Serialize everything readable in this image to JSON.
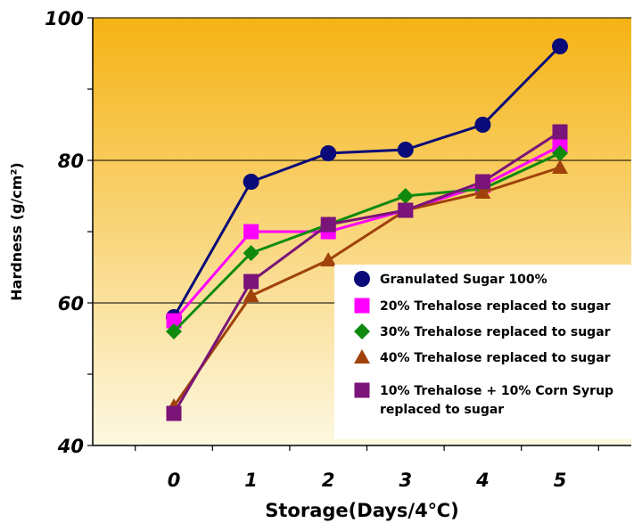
{
  "chart_data": {
    "type": "line",
    "title": "",
    "xlabel": "Storage(Days/4℃)",
    "ylabel": "Hardness (g/cm²)",
    "categories": [
      "0",
      "1",
      "2",
      "3",
      "4",
      "5"
    ],
    "ylim": [
      40,
      100
    ],
    "yticks": [
      "40",
      "60",
      "80",
      "100"
    ],
    "grid": true,
    "legend_position": "bottom-right",
    "background": "gold gradient",
    "series": [
      {
        "name": "Granulated Sugar 100%",
        "marker": "circle",
        "color": "#0a0a78",
        "values": [
          58,
          77,
          81,
          81.5,
          85,
          96
        ]
      },
      {
        "name": "20% Trehalose replaced to sugar",
        "marker": "square",
        "color": "#ff00ff",
        "values": [
          57.5,
          70,
          70,
          73,
          76.5,
          82
        ]
      },
      {
        "name": "30% Trehalose replaced to sugar",
        "marker": "diamond",
        "color": "#0f8a0f",
        "values": [
          56,
          67,
          71,
          75,
          76,
          81
        ]
      },
      {
        "name": "40% Trehalose replaced to sugar",
        "marker": "triangle",
        "color": "#a0420a",
        "values": [
          45.5,
          61,
          66,
          73,
          75.5,
          79
        ]
      },
      {
        "name": "10% Trehalose + 10% Corn Syrup replaced to sugar",
        "name_lines": [
          "10% Trehalose + 10% Corn Syrup",
          "replaced to sugar"
        ],
        "marker": "square",
        "color": "#7a1478",
        "values": [
          44.5,
          63,
          71,
          73,
          77,
          84
        ]
      }
    ]
  }
}
